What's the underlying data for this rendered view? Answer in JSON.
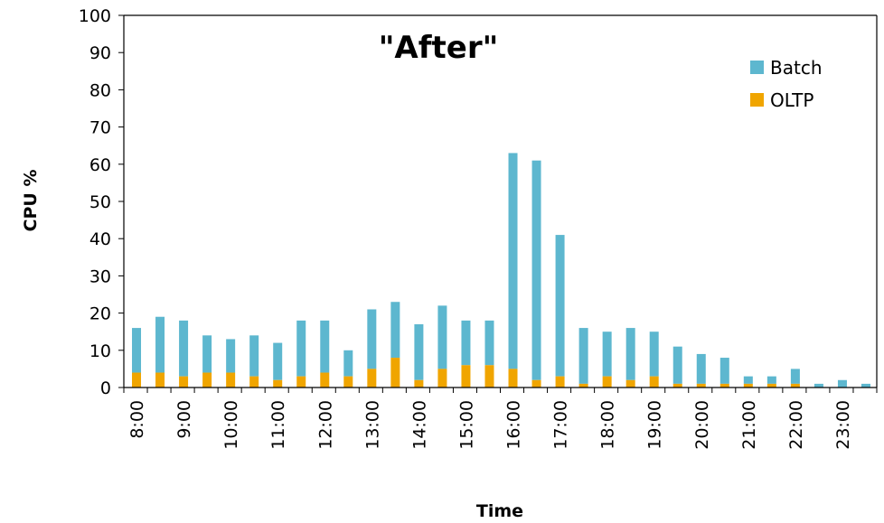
{
  "chart_data": {
    "type": "bar",
    "stacked": true,
    "title": "\"After\"",
    "xlabel": "Time",
    "ylabel": "CPU %",
    "ylim": [
      0,
      100
    ],
    "yticks": [
      0,
      10,
      20,
      30,
      40,
      50,
      60,
      70,
      80,
      90,
      100
    ],
    "tick_labels": [
      "8:00",
      "9:00",
      "10:00",
      "11:00",
      "12:00",
      "13:00",
      "14:00",
      "15:00",
      "16:00",
      "17:00",
      "18:00",
      "19:00",
      "20:00",
      "21:00",
      "22:00",
      "23:00"
    ],
    "categories": [
      "8:00",
      "8:30",
      "9:00",
      "9:30",
      "10:00",
      "10:30",
      "11:00",
      "11:30",
      "12:00",
      "12:30",
      "13:00",
      "13:30",
      "14:00",
      "14:30",
      "15:00",
      "15:30",
      "16:00",
      "16:30",
      "17:00",
      "17:30",
      "18:00",
      "18:30",
      "19:00",
      "19:30",
      "20:00",
      "20:30",
      "21:00",
      "21:30",
      "22:00",
      "22:30",
      "23:00",
      "23:30"
    ],
    "series": [
      {
        "name": "OLTP",
        "color": "#f0a500",
        "values": [
          4,
          4,
          3,
          4,
          4,
          3,
          2,
          3,
          4,
          3,
          5,
          8,
          2,
          5,
          6,
          6,
          5,
          2,
          3,
          1,
          3,
          2,
          3,
          1,
          1,
          1,
          1,
          1,
          1,
          0,
          0,
          0
        ]
      },
      {
        "name": "Batch",
        "color": "#5db7cf",
        "values": [
          12,
          15,
          15,
          10,
          9,
          11,
          10,
          15,
          14,
          7,
          16,
          15,
          15,
          17,
          12,
          12,
          58,
          59,
          38,
          15,
          12,
          14,
          12,
          10,
          8,
          7,
          2,
          2,
          4,
          1,
          2,
          1
        ]
      }
    ],
    "legend_position": "top-right",
    "grid": false
  }
}
